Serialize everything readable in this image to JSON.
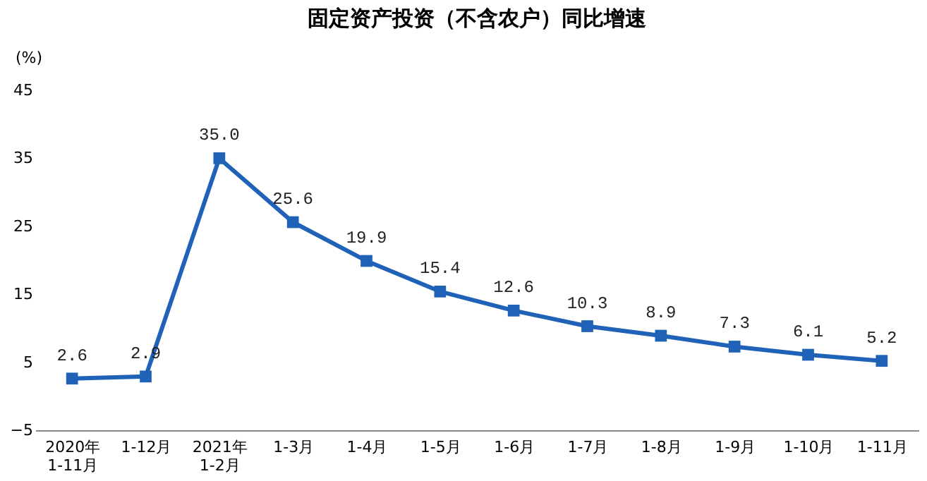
{
  "chart_data": {
    "type": "line",
    "title": "固定资产投资（不含农户）同比增速",
    "ylabel": "(%)",
    "categories": [
      "2020年\n1-11月",
      "1-12月",
      "2021年\n1-2月",
      "1-3月",
      "1-4月",
      "1-5月",
      "1-6月",
      "1-7月",
      "1-8月",
      "1-9月",
      "1-10月",
      "1-11月"
    ],
    "series": [
      {
        "color": "#1f62b8",
        "values": [
          2.6,
          2.9,
          35.0,
          25.6,
          19.9,
          15.4,
          12.6,
          10.3,
          8.9,
          7.3,
          6.1,
          5.2
        ]
      }
    ],
    "value_labels": [
      "2.6",
      "2.9",
      "35.0",
      "25.6",
      "19.9",
      "15.4",
      "12.6",
      "10.3",
      "8.9",
      "7.3",
      "6.1",
      "5.2"
    ],
    "ylim": [
      -5,
      45
    ],
    "yticks": [
      -5,
      5,
      15,
      25,
      35,
      45
    ],
    "grid": false,
    "marker": "square",
    "line_style": "solid"
  }
}
